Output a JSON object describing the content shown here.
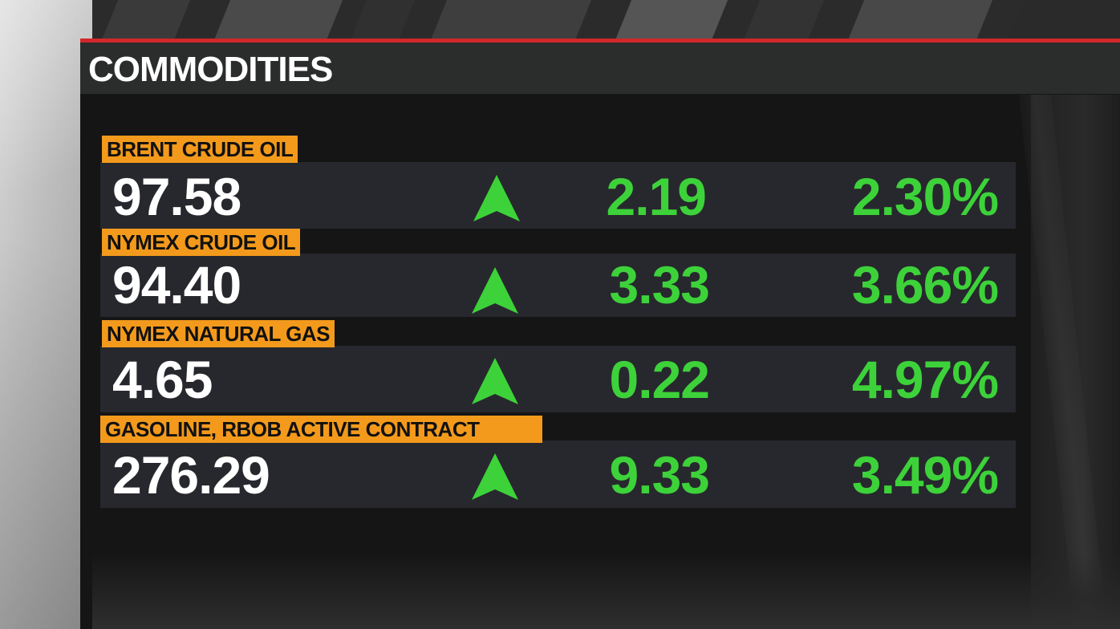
{
  "header": {
    "title": "COMMODITIES"
  },
  "colors": {
    "accent_red": "#d2272a",
    "label_orange": "#f39a1c",
    "up_green": "#3dd23a",
    "row_bg": "#27282d"
  },
  "rows": [
    {
      "name": "BRENT CRUDE OIL",
      "price": "97.58",
      "direction": "up",
      "direction_icon": "up-arrow-icon",
      "change": "2.19",
      "pct_change": "2.30%"
    },
    {
      "name": "NYMEX CRUDE OIL",
      "price": "94.40",
      "direction": "up",
      "direction_icon": "up-arrow-icon",
      "change": "3.33",
      "pct_change": "3.66%"
    },
    {
      "name": "NYMEX NATURAL GAS",
      "price": "4.65",
      "direction": "up",
      "direction_icon": "up-arrow-icon",
      "change": "0.22",
      "pct_change": "4.97%"
    },
    {
      "name": "GASOLINE, RBOB ACTIVE CONTRACT",
      "price": "276.29",
      "direction": "up",
      "direction_icon": "up-arrow-icon",
      "change": "9.33",
      "pct_change": "3.49%"
    }
  ]
}
